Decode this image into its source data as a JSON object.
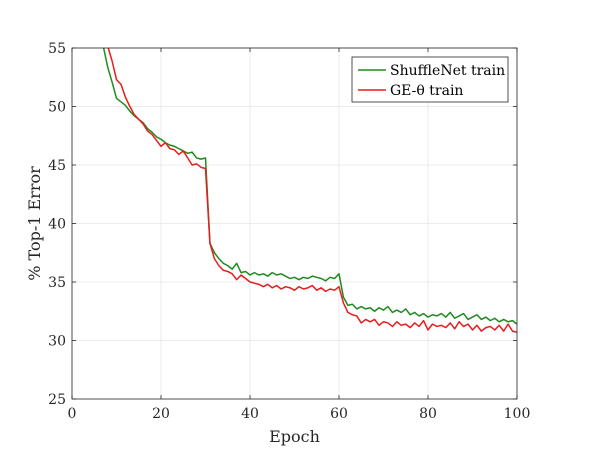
{
  "chart_data": {
    "type": "line",
    "xlabel": "Epoch",
    "ylabel": "% Top-1 Error",
    "xlim": [
      0,
      100
    ],
    "ylim": [
      25,
      55
    ],
    "xticks": [
      "0",
      "20",
      "40",
      "60",
      "80",
      "100"
    ],
    "yticks": [
      "25",
      "30",
      "35",
      "40",
      "45",
      "50",
      "55"
    ],
    "grid": true,
    "legend_position": "top-right",
    "series": [
      {
        "name": "ShuffleNet train",
        "color": "#1f8a1f",
        "points": [
          [
            7,
            55.2
          ],
          [
            8,
            53.4
          ],
          [
            9,
            52.1
          ],
          [
            10,
            50.7
          ],
          [
            11,
            50.4
          ],
          [
            12,
            50.1
          ],
          [
            13,
            49.6
          ],
          [
            14,
            49.2
          ],
          [
            15,
            48.9
          ],
          [
            16,
            48.6
          ],
          [
            17,
            48.1
          ],
          [
            18,
            47.8
          ],
          [
            19,
            47.4
          ],
          [
            20,
            47.2
          ],
          [
            21,
            46.9
          ],
          [
            22,
            46.7
          ],
          [
            23,
            46.6
          ],
          [
            24,
            46.4
          ],
          [
            25,
            46.2
          ],
          [
            26,
            46.0
          ],
          [
            27,
            46.1
          ],
          [
            28,
            45.6
          ],
          [
            29,
            45.5
          ],
          [
            30,
            45.6
          ],
          [
            31,
            38.3
          ],
          [
            32,
            37.5
          ],
          [
            33,
            37.0
          ],
          [
            34,
            36.6
          ],
          [
            35,
            36.4
          ],
          [
            36,
            36.1
          ],
          [
            37,
            36.6
          ],
          [
            38,
            35.8
          ],
          [
            39,
            35.9
          ],
          [
            40,
            35.6
          ],
          [
            41,
            35.8
          ],
          [
            42,
            35.6
          ],
          [
            43,
            35.7
          ],
          [
            44,
            35.5
          ],
          [
            45,
            35.8
          ],
          [
            46,
            35.6
          ],
          [
            47,
            35.7
          ],
          [
            48,
            35.5
          ],
          [
            49,
            35.3
          ],
          [
            50,
            35.4
          ],
          [
            51,
            35.2
          ],
          [
            52,
            35.4
          ],
          [
            53,
            35.3
          ],
          [
            54,
            35.5
          ],
          [
            55,
            35.4
          ],
          [
            56,
            35.3
          ],
          [
            57,
            35.1
          ],
          [
            58,
            35.4
          ],
          [
            59,
            35.3
          ],
          [
            60,
            35.7
          ],
          [
            61,
            33.7
          ],
          [
            62,
            33.0
          ],
          [
            63,
            33.1
          ],
          [
            64,
            32.7
          ],
          [
            65,
            32.9
          ],
          [
            66,
            32.7
          ],
          [
            67,
            32.8
          ],
          [
            68,
            32.5
          ],
          [
            69,
            32.8
          ],
          [
            70,
            32.6
          ],
          [
            71,
            32.9
          ],
          [
            72,
            32.4
          ],
          [
            73,
            32.6
          ],
          [
            74,
            32.4
          ],
          [
            75,
            32.7
          ],
          [
            76,
            32.2
          ],
          [
            77,
            32.4
          ],
          [
            78,
            32.1
          ],
          [
            79,
            32.3
          ],
          [
            80,
            32.0
          ],
          [
            81,
            32.2
          ],
          [
            82,
            32.1
          ],
          [
            83,
            32.3
          ],
          [
            84,
            32.0
          ],
          [
            85,
            32.4
          ],
          [
            86,
            31.9
          ],
          [
            87,
            32.1
          ],
          [
            88,
            32.3
          ],
          [
            89,
            31.8
          ],
          [
            90,
            32.0
          ],
          [
            91,
            32.2
          ],
          [
            92,
            31.8
          ],
          [
            93,
            32.0
          ],
          [
            94,
            31.7
          ],
          [
            95,
            31.9
          ],
          [
            96,
            31.6
          ],
          [
            97,
            31.8
          ],
          [
            98,
            31.6
          ],
          [
            99,
            31.7
          ],
          [
            100,
            31.4
          ]
        ]
      },
      {
        "name": "GE-θ train",
        "color": "#e81c1c",
        "points": [
          [
            8,
            55.2
          ],
          [
            9,
            53.9
          ],
          [
            10,
            52.3
          ],
          [
            11,
            51.9
          ],
          [
            12,
            50.8
          ],
          [
            13,
            50.0
          ],
          [
            14,
            49.3
          ],
          [
            15,
            48.9
          ],
          [
            16,
            48.5
          ],
          [
            17,
            47.9
          ],
          [
            18,
            47.6
          ],
          [
            19,
            47.1
          ],
          [
            20,
            46.6
          ],
          [
            21,
            46.9
          ],
          [
            22,
            46.4
          ],
          [
            23,
            46.3
          ],
          [
            24,
            45.9
          ],
          [
            25,
            46.2
          ],
          [
            26,
            45.6
          ],
          [
            27,
            45.0
          ],
          [
            28,
            45.1
          ],
          [
            29,
            44.8
          ],
          [
            30,
            44.7
          ],
          [
            31,
            38.3
          ],
          [
            32,
            37.0
          ],
          [
            33,
            36.4
          ],
          [
            34,
            36.0
          ],
          [
            35,
            35.9
          ],
          [
            36,
            35.7
          ],
          [
            37,
            35.2
          ],
          [
            38,
            35.6
          ],
          [
            39,
            35.3
          ],
          [
            40,
            35.0
          ],
          [
            41,
            34.9
          ],
          [
            42,
            34.8
          ],
          [
            43,
            34.6
          ],
          [
            44,
            34.8
          ],
          [
            45,
            34.5
          ],
          [
            46,
            34.7
          ],
          [
            47,
            34.4
          ],
          [
            48,
            34.6
          ],
          [
            49,
            34.5
          ],
          [
            50,
            34.3
          ],
          [
            51,
            34.6
          ],
          [
            52,
            34.4
          ],
          [
            53,
            34.5
          ],
          [
            54,
            34.7
          ],
          [
            55,
            34.3
          ],
          [
            56,
            34.5
          ],
          [
            57,
            34.2
          ],
          [
            58,
            34.4
          ],
          [
            59,
            34.3
          ],
          [
            60,
            34.6
          ],
          [
            61,
            33.2
          ],
          [
            62,
            32.4
          ],
          [
            63,
            32.2
          ],
          [
            64,
            32.1
          ],
          [
            65,
            31.5
          ],
          [
            66,
            31.8
          ],
          [
            67,
            31.6
          ],
          [
            68,
            31.8
          ],
          [
            69,
            31.3
          ],
          [
            70,
            31.6
          ],
          [
            71,
            31.5
          ],
          [
            72,
            31.2
          ],
          [
            73,
            31.6
          ],
          [
            74,
            31.3
          ],
          [
            75,
            31.4
          ],
          [
            76,
            31.1
          ],
          [
            77,
            31.5
          ],
          [
            78,
            31.2
          ],
          [
            79,
            31.7
          ],
          [
            80,
            30.9
          ],
          [
            81,
            31.4
          ],
          [
            82,
            31.2
          ],
          [
            83,
            31.3
          ],
          [
            84,
            31.1
          ],
          [
            85,
            31.5
          ],
          [
            86,
            31.0
          ],
          [
            87,
            31.6
          ],
          [
            88,
            31.2
          ],
          [
            89,
            31.4
          ],
          [
            90,
            30.9
          ],
          [
            91,
            31.3
          ],
          [
            92,
            30.8
          ],
          [
            93,
            31.1
          ],
          [
            94,
            31.2
          ],
          [
            95,
            30.9
          ],
          [
            96,
            31.3
          ],
          [
            97,
            30.8
          ],
          [
            98,
            31.4
          ],
          [
            99,
            30.8
          ],
          [
            100,
            30.7
          ]
        ]
      }
    ]
  }
}
